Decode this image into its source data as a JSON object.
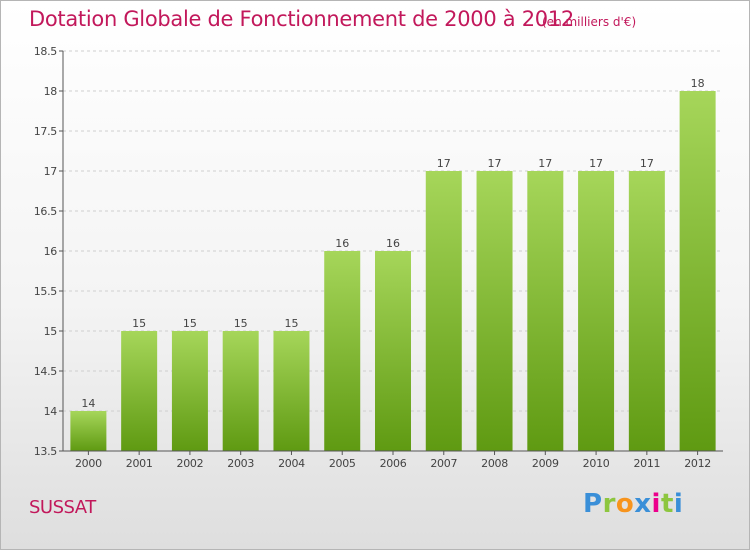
{
  "header": {
    "title": "Dotation Globale de Fonctionnement de 2000 à 2012",
    "subtitle": "(en milliers d'€)"
  },
  "footer": {
    "commune": "SUSSAT",
    "logo": {
      "letters": [
        "P",
        "r",
        "o",
        "x",
        "i",
        "t",
        "i"
      ],
      "colors": [
        "#3a8fd8",
        "#8dc63f",
        "#f7941d",
        "#3a8fd8",
        "#ec008c",
        "#8dc63f",
        "#3a8fd8"
      ]
    }
  },
  "colors": {
    "bar_light": "#a6d65a",
    "bar_dark": "#5f9a12",
    "axis": "#555555",
    "grid": "#cfcfcf",
    "title": "#c2185b"
  },
  "chart_data": {
    "type": "bar",
    "categories": [
      "2000",
      "2001",
      "2002",
      "2003",
      "2004",
      "2005",
      "2006",
      "2007",
      "2008",
      "2009",
      "2010",
      "2011",
      "2012"
    ],
    "values": [
      14,
      15,
      15,
      15,
      15,
      16,
      16,
      17,
      17,
      17,
      17,
      17,
      18
    ],
    "data_labels": [
      "14",
      "15",
      "15",
      "15",
      "15",
      "16",
      "16",
      "17",
      "17",
      "17",
      "17",
      "17",
      "18"
    ],
    "title": "Dotation Globale de Fonctionnement de 2000 à 2012",
    "subtitle": "(en milliers d'€)",
    "ylim": [
      13.5,
      18.5
    ],
    "yticks": [
      13.5,
      14,
      14.5,
      15,
      15.5,
      16,
      16.5,
      17,
      17.5,
      18,
      18.5
    ],
    "ytick_labels": [
      "13.5",
      "14",
      "14.5",
      "15",
      "15.5",
      "16",
      "16.5",
      "17",
      "17.5",
      "18",
      "18.5"
    ],
    "grid": "horizontal dashed",
    "legend": "none"
  }
}
